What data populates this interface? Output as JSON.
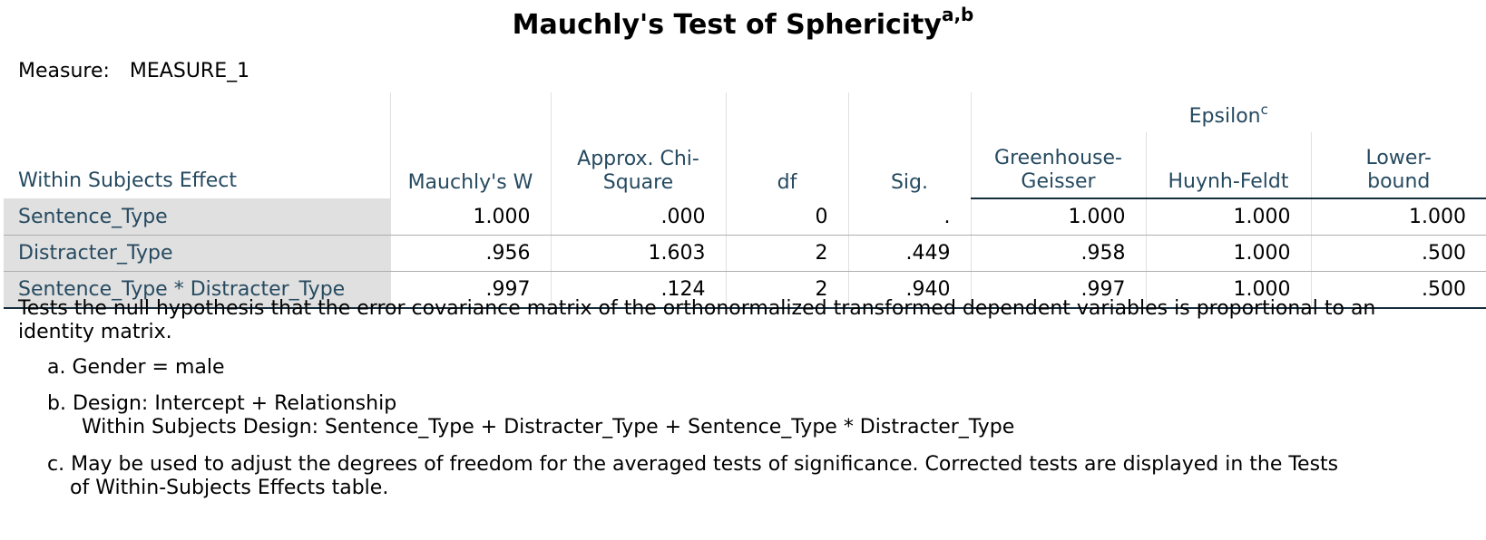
{
  "title": {
    "text": "Mauchly's Test of Sphericity",
    "sup": "a,b"
  },
  "measure": {
    "label": "Measure:",
    "value": "MEASURE_1"
  },
  "header": {
    "row_label": "Within Subjects Effect",
    "mauchly_w": "Mauchly's W",
    "chi_square_line1": "Approx. Chi-",
    "chi_square_line2": "Square",
    "df": "df",
    "sig": "Sig.",
    "epsilon": "Epsilon",
    "epsilon_sup": "c",
    "gg_line1": "Greenhouse-",
    "gg_line2": "Geisser",
    "hf": "Huynh-Feldt",
    "lb_line1": "Lower-",
    "lb_line2": "bound"
  },
  "rows": [
    {
      "effect": "Sentence_Type",
      "mauchly_w": "1.000",
      "chi_square": ".000",
      "df": "0",
      "sig": ".",
      "greenhouse_geisser": "1.000",
      "huynh_feldt": "1.000",
      "lower_bound": "1.000"
    },
    {
      "effect": "Distracter_Type",
      "mauchly_w": ".956",
      "chi_square": "1.603",
      "df": "2",
      "sig": ".449",
      "greenhouse_geisser": ".958",
      "huynh_feldt": "1.000",
      "lower_bound": ".500"
    },
    {
      "effect": "Sentence_Type * Distracter_Type",
      "mauchly_w": ".997",
      "chi_square": ".124",
      "df": "2",
      "sig": ".940",
      "greenhouse_geisser": ".997",
      "huynh_feldt": "1.000",
      "lower_bound": ".500"
    }
  ],
  "footnotes": {
    "main": "Tests the null hypothesis that the error covariance matrix of the orthonormalized transformed dependent variables is proportional to an identity matrix.",
    "a": "a. Gender = male",
    "b_line1": "b. Design: Intercept + Relationship",
    "b_line2": "Within Subjects Design: Sentence_Type + Distracter_Type + Sentence_Type * Distracter_Type",
    "c_line1": "c. May be used to adjust the degrees of freedom for the averaged tests of significance. Corrected tests are displayed in the Tests",
    "c_line2": "of Within-Subjects Effects table."
  }
}
